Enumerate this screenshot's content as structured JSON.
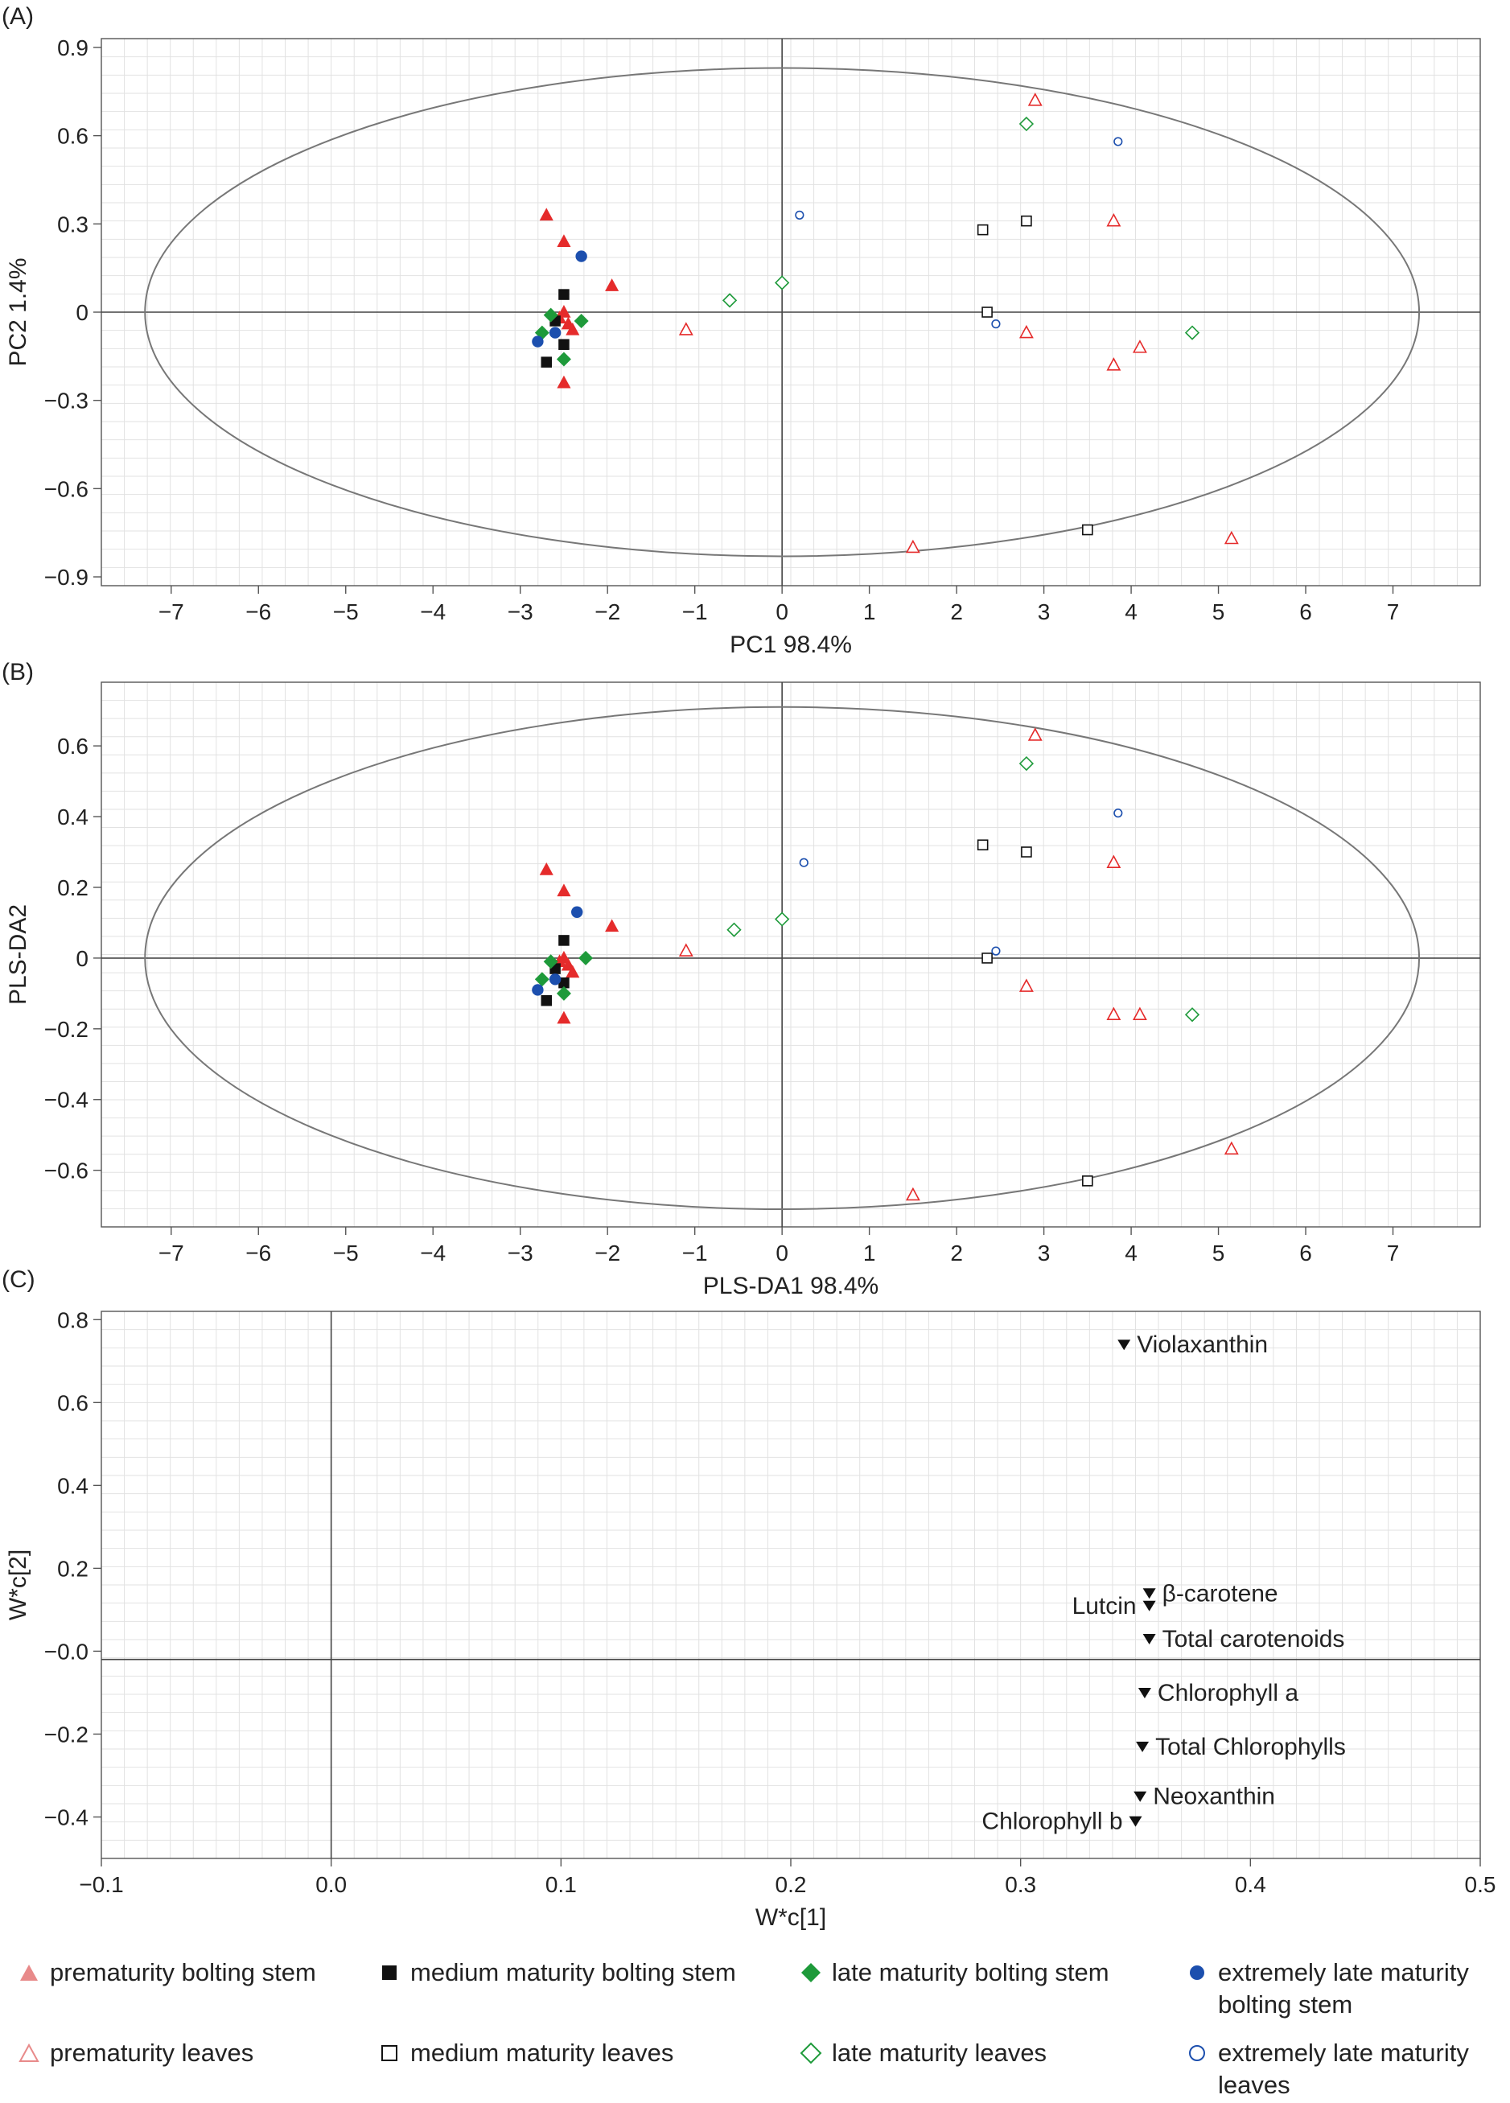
{
  "colors": {
    "prematurity": "#e52b2b",
    "medium": "#111111",
    "late": "#1e9a3a",
    "extreme": "#1c4fae",
    "ellipse": "#777777",
    "grid": "#e2e2e2",
    "axis": "#555555"
  },
  "chart_data": [
    {
      "type": "scatter",
      "panel": "(A)",
      "xlabel": "PC1 98.4%",
      "ylabel": "PC2 1.4%",
      "xlim": [
        -7.8,
        8.0
      ],
      "ylim": [
        -0.93,
        0.93
      ],
      "xticks": [
        -7,
        -6,
        -5,
        -4,
        -3,
        -2,
        -1,
        0,
        1,
        2,
        3,
        4,
        5,
        6,
        7
      ],
      "yticks": [
        0.9,
        0.6,
        0.3,
        0,
        -0.3,
        -0.6,
        -0.9
      ],
      "ytick_labels": [
        "0.9",
        "0.6",
        "0.3",
        "0",
        "−0.3",
        "−0.6",
        "−0.9"
      ],
      "ellipse": {
        "rx": 7.3,
        "ry": 0.83
      },
      "series": [
        {
          "name": "prematurity bolting stem",
          "marker": "triangle",
          "filled": true,
          "color": "#e52b2b",
          "points": [
            [
              -2.7,
              0.33
            ],
            [
              -2.5,
              0.24
            ],
            [
              -1.95,
              0.09
            ],
            [
              -2.5,
              0.0
            ],
            [
              -2.4,
              -0.06
            ],
            [
              -2.45,
              -0.04
            ],
            [
              -2.55,
              -0.02
            ],
            [
              -2.5,
              -0.24
            ]
          ]
        },
        {
          "name": "medium maturity bolting stem",
          "marker": "square",
          "filled": true,
          "color": "#111111",
          "points": [
            [
              -2.5,
              0.06
            ],
            [
              -2.6,
              -0.03
            ],
            [
              -2.5,
              -0.11
            ],
            [
              -2.7,
              -0.17
            ]
          ]
        },
        {
          "name": "late maturity bolting stem",
          "marker": "diamond",
          "filled": true,
          "color": "#1e9a3a",
          "points": [
            [
              -2.65,
              -0.01
            ],
            [
              -2.3,
              -0.03
            ],
            [
              -2.75,
              -0.07
            ],
            [
              -2.5,
              -0.16
            ]
          ]
        },
        {
          "name": "extremely late maturity bolting stem",
          "marker": "circle",
          "filled": true,
          "color": "#1c4fae",
          "points": [
            [
              -2.3,
              0.19
            ],
            [
              -2.8,
              -0.1
            ],
            [
              -2.6,
              -0.07
            ]
          ]
        },
        {
          "name": "prematurity leaves",
          "marker": "triangle",
          "filled": false,
          "color": "#e52b2b",
          "points": [
            [
              2.9,
              0.72
            ],
            [
              3.8,
              0.31
            ],
            [
              -1.1,
              -0.06
            ],
            [
              2.8,
              -0.07
            ],
            [
              4.1,
              -0.12
            ],
            [
              3.8,
              -0.18
            ],
            [
              1.5,
              -0.8
            ],
            [
              5.15,
              -0.77
            ]
          ]
        },
        {
          "name": "medium maturity leaves",
          "marker": "square",
          "filled": false,
          "color": "#111111",
          "points": [
            [
              2.3,
              0.28
            ],
            [
              2.8,
              0.31
            ],
            [
              2.35,
              0.0
            ],
            [
              3.5,
              -0.74
            ]
          ]
        },
        {
          "name": "late maturity leaves",
          "marker": "diamond",
          "filled": false,
          "color": "#1e9a3a",
          "points": [
            [
              2.8,
              0.64
            ],
            [
              0.0,
              0.1
            ],
            [
              -0.6,
              0.04
            ],
            [
              4.7,
              -0.07
            ]
          ]
        },
        {
          "name": "extremely late maturity leaves",
          "marker": "circle",
          "filled": false,
          "color": "#1c4fae",
          "points": [
            [
              3.85,
              0.58
            ],
            [
              0.2,
              0.33
            ],
            [
              2.45,
              -0.04
            ]
          ]
        }
      ]
    },
    {
      "type": "scatter",
      "panel": "(B)",
      "xlabel": "PLS-DA1 98.4%",
      "ylabel": "PLS-DA2",
      "xlim": [
        -7.8,
        8.0
      ],
      "ylim": [
        -0.76,
        0.78
      ],
      "xticks": [
        -7,
        -6,
        -5,
        -4,
        -3,
        -2,
        -1,
        0,
        1,
        2,
        3,
        4,
        5,
        6,
        7
      ],
      "yticks": [
        0.6,
        0.4,
        0.2,
        0,
        -0.2,
        -0.4,
        -0.6
      ],
      "ytick_labels": [
        "0.6",
        "0.4",
        "0.2",
        "0",
        "−0.2",
        "−0.4",
        "−0.6"
      ],
      "ellipse": {
        "rx": 7.3,
        "ry": 0.71
      },
      "series": [
        {
          "name": "prematurity bolting stem",
          "marker": "triangle",
          "filled": true,
          "color": "#e52b2b",
          "points": [
            [
              -2.7,
              0.25
            ],
            [
              -2.5,
              0.19
            ],
            [
              -1.95,
              0.09
            ],
            [
              -2.5,
              0.0
            ],
            [
              -2.4,
              -0.04
            ],
            [
              -2.45,
              -0.02
            ],
            [
              -2.55,
              -0.01
            ],
            [
              -2.5,
              -0.17
            ]
          ]
        },
        {
          "name": "medium maturity bolting stem",
          "marker": "square",
          "filled": true,
          "color": "#111111",
          "points": [
            [
              -2.5,
              0.05
            ],
            [
              -2.6,
              -0.03
            ],
            [
              -2.5,
              -0.07
            ],
            [
              -2.7,
              -0.12
            ]
          ]
        },
        {
          "name": "late maturity bolting stem",
          "marker": "diamond",
          "filled": true,
          "color": "#1e9a3a",
          "points": [
            [
              -2.65,
              -0.01
            ],
            [
              -2.25,
              0.0
            ],
            [
              -2.75,
              -0.06
            ],
            [
              -2.5,
              -0.1
            ]
          ]
        },
        {
          "name": "extremely late maturity bolting stem",
          "marker": "circle",
          "filled": true,
          "color": "#1c4fae",
          "points": [
            [
              -2.35,
              0.13
            ],
            [
              -2.8,
              -0.09
            ],
            [
              -2.6,
              -0.06
            ]
          ]
        },
        {
          "name": "prematurity leaves",
          "marker": "triangle",
          "filled": false,
          "color": "#e52b2b",
          "points": [
            [
              2.9,
              0.63
            ],
            [
              3.8,
              0.27
            ],
            [
              -1.1,
              0.02
            ],
            [
              2.8,
              -0.08
            ],
            [
              4.1,
              -0.16
            ],
            [
              3.8,
              -0.16
            ],
            [
              1.5,
              -0.67
            ],
            [
              5.15,
              -0.54
            ]
          ]
        },
        {
          "name": "medium maturity leaves",
          "marker": "square",
          "filled": false,
          "color": "#111111",
          "points": [
            [
              2.3,
              0.32
            ],
            [
              2.8,
              0.3
            ],
            [
              2.35,
              0.0
            ],
            [
              3.5,
              -0.63
            ]
          ]
        },
        {
          "name": "late maturity leaves",
          "marker": "diamond",
          "filled": false,
          "color": "#1e9a3a",
          "points": [
            [
              2.8,
              0.55
            ],
            [
              0.0,
              0.11
            ],
            [
              -0.55,
              0.08
            ],
            [
              4.7,
              -0.16
            ]
          ]
        },
        {
          "name": "extremely late maturity leaves",
          "marker": "circle",
          "filled": false,
          "color": "#1c4fae",
          "points": [
            [
              3.85,
              0.41
            ],
            [
              0.25,
              0.27
            ],
            [
              2.45,
              0.02
            ]
          ]
        }
      ]
    },
    {
      "type": "scatter",
      "panel": "(C)",
      "xlabel": "W*c[1]",
      "ylabel": "W*c[2]",
      "xlim": [
        -0.1,
        0.5
      ],
      "ylim": [
        -0.5,
        0.82
      ],
      "xticks": [
        -0.1,
        0.0,
        0.1,
        0.2,
        0.3,
        0.4,
        0.5
      ],
      "xtick_labels": [
        "−0.1",
        "0.0",
        "0.1",
        "0.2",
        "0.3",
        "0.4",
        "0.5"
      ],
      "yticks": [
        0.8,
        0.6,
        0.4,
        0.2,
        0.0,
        -0.2,
        -0.4
      ],
      "ytick_labels": [
        "0.8",
        "0.6",
        "0.4",
        "0.2",
        "−0.0",
        "−0.2",
        "−0.4"
      ],
      "zero_lines": {
        "x": 0.0,
        "y": -0.02
      },
      "loadings": [
        {
          "name": "Violaxanthin",
          "x": 0.345,
          "y": 0.74,
          "label_side": "right"
        },
        {
          "name": "β-carotene",
          "x": 0.356,
          "y": 0.14,
          "label_side": "right"
        },
        {
          "name": "Lutcin",
          "x": 0.356,
          "y": 0.11,
          "label_side": "left"
        },
        {
          "name": "Total carotenoids",
          "x": 0.356,
          "y": 0.03,
          "label_side": "right"
        },
        {
          "name": "Chlorophyll a",
          "x": 0.354,
          "y": -0.1,
          "label_side": "right"
        },
        {
          "name": "Total Chlorophylls",
          "x": 0.353,
          "y": -0.23,
          "label_side": "right"
        },
        {
          "name": "Neoxanthin",
          "x": 0.352,
          "y": -0.35,
          "label_side": "right"
        },
        {
          "name": "Chlorophyll b",
          "x": 0.35,
          "y": -0.41,
          "label_side": "left"
        }
      ]
    }
  ],
  "legend": [
    {
      "key": "prematurity_bolting_stem",
      "label": "prematurity bolting stem",
      "marker": "triangle",
      "filled": true,
      "color": "#e88a8a"
    },
    {
      "key": "medium_maturity_bolting_stem",
      "label": "medium maturity bolting stem",
      "marker": "square",
      "filled": true,
      "color": "#111111"
    },
    {
      "key": "late_maturity_bolting_stem",
      "label": "late maturity bolting stem",
      "marker": "diamond",
      "filled": true,
      "color": "#1e9a3a"
    },
    {
      "key": "extremely_late_bolting_stem",
      "label": "extremely late maturity\nbolting stem",
      "marker": "circle",
      "filled": true,
      "color": "#1c4fae"
    },
    {
      "key": "prematurity_leaves",
      "label": "prematurity leaves",
      "marker": "triangle",
      "filled": false,
      "color": "#e88a8a"
    },
    {
      "key": "medium_maturity_leaves",
      "label": "medium maturity leaves",
      "marker": "square",
      "filled": false,
      "color": "#111111"
    },
    {
      "key": "late_maturity_leaves",
      "label": "late maturity leaves",
      "marker": "diamond",
      "filled": false,
      "color": "#1e9a3a"
    },
    {
      "key": "extremely_late_leaves",
      "label": "extremely late maturity\nleaves",
      "marker": "circle",
      "filled": false,
      "color": "#1c4fae"
    }
  ]
}
